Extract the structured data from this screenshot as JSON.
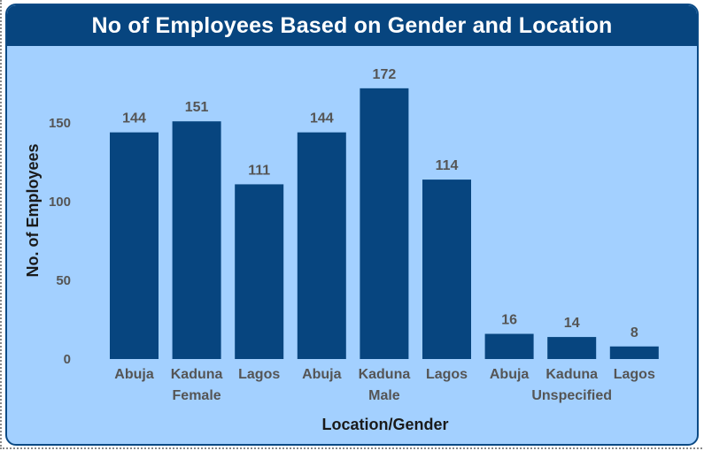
{
  "chart_data": {
    "type": "bar",
    "title": "No of Employees Based on Gender and Location",
    "xlabel": "Location/Gender",
    "ylabel": "No. of Employees",
    "ylim": [
      0,
      172
    ],
    "yticks": [
      0,
      50,
      100,
      150
    ],
    "grid": false,
    "legend": "none",
    "groups": [
      {
        "name": "Female",
        "categories": [
          "Abuja",
          "Kaduna",
          "Lagos"
        ],
        "values": [
          144,
          151,
          111
        ]
      },
      {
        "name": "Male",
        "categories": [
          "Abuja",
          "Kaduna",
          "Lagos"
        ],
        "values": [
          144,
          172,
          114
        ]
      },
      {
        "name": "Unspecified",
        "categories": [
          "Abuja",
          "Kaduna",
          "Lagos"
        ],
        "values": [
          16,
          14,
          8
        ]
      }
    ]
  },
  "colors": {
    "bar": "#07457f",
    "background": "#a3d0ff",
    "title_bar": "#07457f"
  }
}
